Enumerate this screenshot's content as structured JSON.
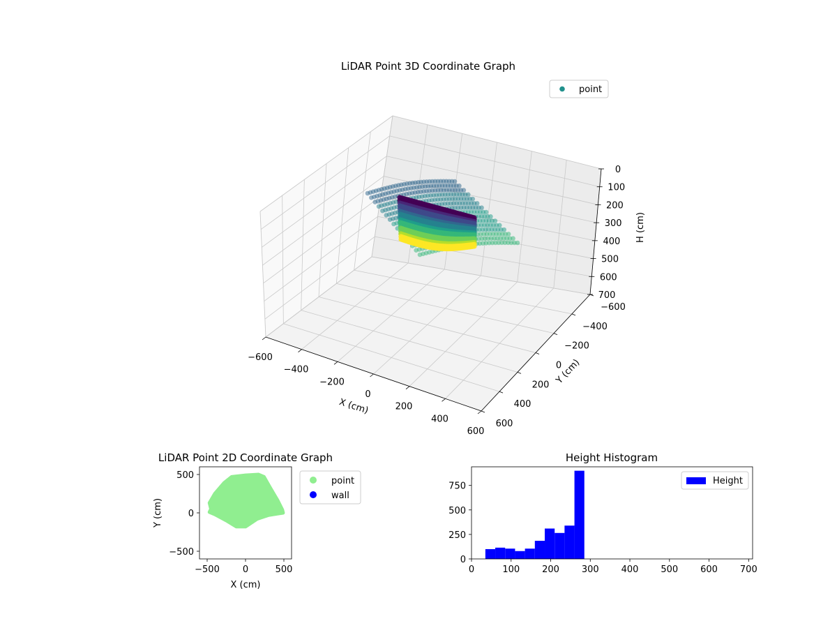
{
  "colors": {
    "point_3d_legend": "#21918c",
    "point_2d": "#90ee90",
    "wall_2d": "#0000ff",
    "histogram": "#0000ff"
  },
  "chart_data": [
    {
      "type": "scatter",
      "projection": "3d",
      "title": "LiDAR Point 3D Coordinate Graph",
      "xlabel": "X (cm)",
      "ylabel": "Y (cm)",
      "zlabel": "H (cm)",
      "xlim": [
        -600,
        600
      ],
      "ylim": [
        -600,
        600
      ],
      "zlim": [
        700,
        0
      ],
      "x_ticks": [
        "−600",
        "−400",
        "−200",
        "0",
        "200",
        "400",
        "600"
      ],
      "y_ticks": [
        "−600",
        "−400",
        "−200",
        "0",
        "200",
        "400",
        "600"
      ],
      "z_ticks": [
        "0",
        "100",
        "200",
        "300",
        "400",
        "500",
        "600",
        "700"
      ],
      "colormap": "viridis",
      "legend": {
        "placement": "top-right",
        "entries": [
          "point"
        ]
      },
      "grid": true
    },
    {
      "type": "scatter",
      "title": "LiDAR Point 2D Coordinate Graph",
      "xlabel": "X (cm)",
      "ylabel": "Y (cm)",
      "xlim": [
        -600,
        600
      ],
      "ylim": [
        -600,
        600
      ],
      "x_ticks": [
        "−500",
        "0",
        "500"
      ],
      "y_ticks": [
        "−500",
        "0",
        "500"
      ],
      "legend": {
        "placement": "outside-right",
        "entries": [
          "point",
          "wall"
        ]
      },
      "point_outline": [
        [
          -450,
          50
        ],
        [
          -470,
          130
        ],
        [
          -400,
          250
        ],
        [
          -280,
          390
        ],
        [
          -180,
          470
        ],
        [
          0,
          490
        ],
        [
          170,
          500
        ],
        [
          240,
          470
        ],
        [
          320,
          330
        ],
        [
          420,
          160
        ],
        [
          480,
          40
        ],
        [
          490,
          0
        ],
        [
          420,
          -10
        ],
        [
          300,
          -30
        ],
        [
          150,
          -80
        ],
        [
          60,
          -140
        ],
        [
          0,
          -180
        ],
        [
          -120,
          -180
        ],
        [
          -250,
          -100
        ],
        [
          -400,
          -20
        ],
        [
          -470,
          10
        ]
      ]
    },
    {
      "type": "bar",
      "subtype": "histogram",
      "title": "Height Histogram",
      "xlim": [
        0,
        710
      ],
      "ylim": [
        0,
        940
      ],
      "x_ticks": [
        "0",
        "100",
        "200",
        "300",
        "400",
        "500",
        "600",
        "700"
      ],
      "y_ticks": [
        "0",
        "250",
        "500",
        "750"
      ],
      "bin_edges": [
        35,
        60,
        85,
        110,
        135,
        160,
        185,
        210,
        235,
        260,
        285
      ],
      "counts": [
        100,
        115,
        105,
        80,
        105,
        185,
        310,
        265,
        340,
        900
      ],
      "series": [
        {
          "name": "Height"
        }
      ],
      "legend": {
        "placement": "top-right",
        "entries": [
          "Height"
        ]
      }
    }
  ]
}
